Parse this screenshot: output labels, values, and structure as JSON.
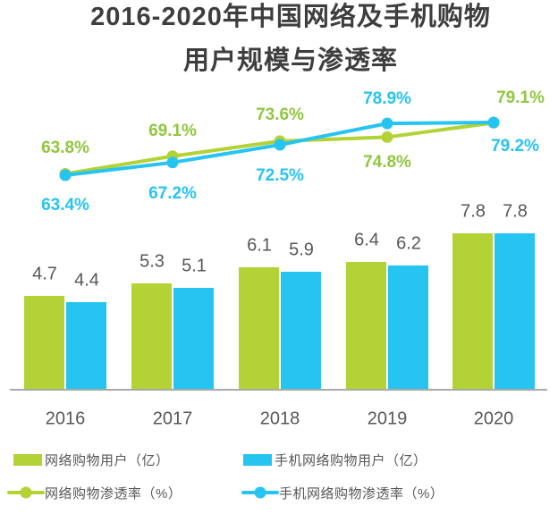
{
  "title": {
    "line1": "2016-2020年中国网络及手机购物",
    "line2": "用户规模与渗透率"
  },
  "colors": {
    "green": "#b2d235",
    "blue": "#26c4f1",
    "green_label_text": "#8fc73e",
    "blue_label_text": "#26c4f1",
    "gray_text": "#575757",
    "title_text": "#3e3e3e",
    "axis_line": "#a9a9a9"
  },
  "chart_data": {
    "type": "bar+line combo",
    "title": "2016-2020年中国网络及手机购物用户规模与渗透率",
    "categories": [
      "2016",
      "2017",
      "2018",
      "2019",
      "2020"
    ],
    "series": [
      {
        "name": "网络购物用户（亿）",
        "type": "bar",
        "color_key": "green",
        "values": [
          4.7,
          5.3,
          6.1,
          6.4,
          7.8
        ],
        "display_labels": [
          "4.7",
          "5.3",
          "6.1",
          "6.4",
          "7.8"
        ]
      },
      {
        "name": "手机网络购物用户（亿）",
        "type": "bar",
        "color_key": "blue",
        "values": [
          4.4,
          5.1,
          5.9,
          6.2,
          7.8
        ],
        "display_labels": [
          "4.4",
          "5.1",
          "5.9",
          "6.2",
          "7.8"
        ]
      },
      {
        "name": "网络购物渗透率（%）",
        "type": "line",
        "color_key": "green",
        "values": [
          63.8,
          69.1,
          73.6,
          74.8,
          79.1
        ],
        "display_labels": [
          "63.8%",
          "69.1%",
          "73.6%",
          "74.8%",
          "79.1%"
        ]
      },
      {
        "name": "手机网络购物渗透率（%）",
        "type": "line",
        "color_key": "blue",
        "values": [
          63.4,
          67.2,
          72.5,
          78.9,
          79.2
        ],
        "display_labels": [
          "63.4%",
          "67.2%",
          "72.5%",
          "78.9%",
          "79.2%"
        ]
      }
    ],
    "bar_unit": "亿",
    "line_unit": "%",
    "value_axes_visible": false,
    "gridlines": false,
    "data_labels_visible": true,
    "legend_position": "bottom"
  }
}
